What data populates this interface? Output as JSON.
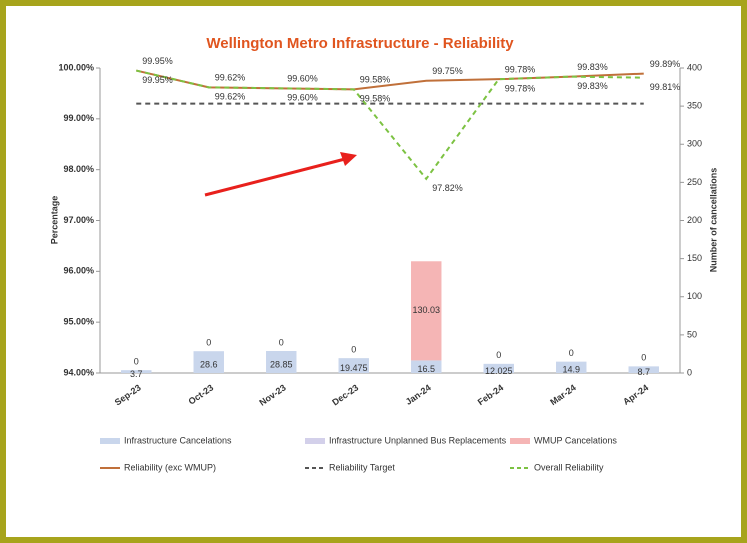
{
  "chart_data": {
    "type": "combo",
    "title": "Wellington Metro Infrastructure - Reliability",
    "y_label": "Percentage",
    "y2_label": "Number of cancellations",
    "categories": [
      "Sep-23",
      "Oct-23",
      "Nov-23",
      "Dec-23",
      "Jan-24",
      "Feb-24",
      "Mar-24",
      "Apr-24"
    ],
    "ylim": [
      94,
      100
    ],
    "yticks": [
      {
        "value": 94,
        "label": "94.00%"
      },
      {
        "value": 95,
        "label": "95.00%"
      },
      {
        "value": 96,
        "label": "96.00%"
      },
      {
        "value": 97,
        "label": "97.00%"
      },
      {
        "value": 98,
        "label": "98.00%"
      },
      {
        "value": 99,
        "label": "99.00%"
      },
      {
        "value": 100,
        "label": "100.00%"
      }
    ],
    "y2lim": [
      0,
      400
    ],
    "y2ticks": [
      0,
      50,
      100,
      150,
      200,
      250,
      300,
      350,
      400
    ],
    "legend": "bottom",
    "series": [
      {
        "name": "Infrastructure Cancelations",
        "kind": "bar",
        "axis": "y2",
        "color": "#c9d6ec",
        "values": [
          3.7,
          28.6,
          28.85,
          19.475,
          16.5,
          12.025,
          14.9,
          8.7
        ]
      },
      {
        "name": "Infrastructure Unplanned Bus Replacements",
        "kind": "bar",
        "axis": "y2",
        "color": "#d3d0ea",
        "values": [
          0,
          0,
          0,
          0,
          0,
          0,
          0,
          0
        ]
      },
      {
        "name": "WMUP Cancelations",
        "kind": "bar",
        "axis": "y2",
        "color": "#f5b5b5",
        "values": [
          0,
          0,
          0,
          0,
          130.03,
          0,
          0,
          0
        ]
      },
      {
        "name": "Reliability (exc WMUP)",
        "kind": "line",
        "color": "#c0703a",
        "dash": false,
        "values": [
          99.95,
          99.62,
          99.6,
          99.58,
          99.75,
          99.78,
          99.83,
          99.89
        ],
        "value_labels": [
          "99.95%",
          "99.62%",
          "99.60%",
          "99.58%",
          "99.75%",
          "99.78%",
          "99.83%",
          "99.89%"
        ]
      },
      {
        "name": "Reliability Target",
        "kind": "line",
        "color": "#555555",
        "dash": true,
        "values": [
          99.3,
          99.3,
          99.3,
          99.3,
          99.3,
          99.3,
          99.3,
          99.3
        ]
      },
      {
        "name": "Overall Reliability",
        "kind": "line",
        "color": "#7cc242",
        "dash": true,
        "values": [
          99.95,
          99.62,
          99.6,
          99.58,
          97.82,
          99.78,
          99.83,
          99.81
        ],
        "value_labels": [
          "99.95%",
          "99.62%",
          "99.60%",
          "99.58%",
          "97.82%",
          "99.78%",
          "99.83%",
          "99.81%"
        ]
      }
    ]
  }
}
